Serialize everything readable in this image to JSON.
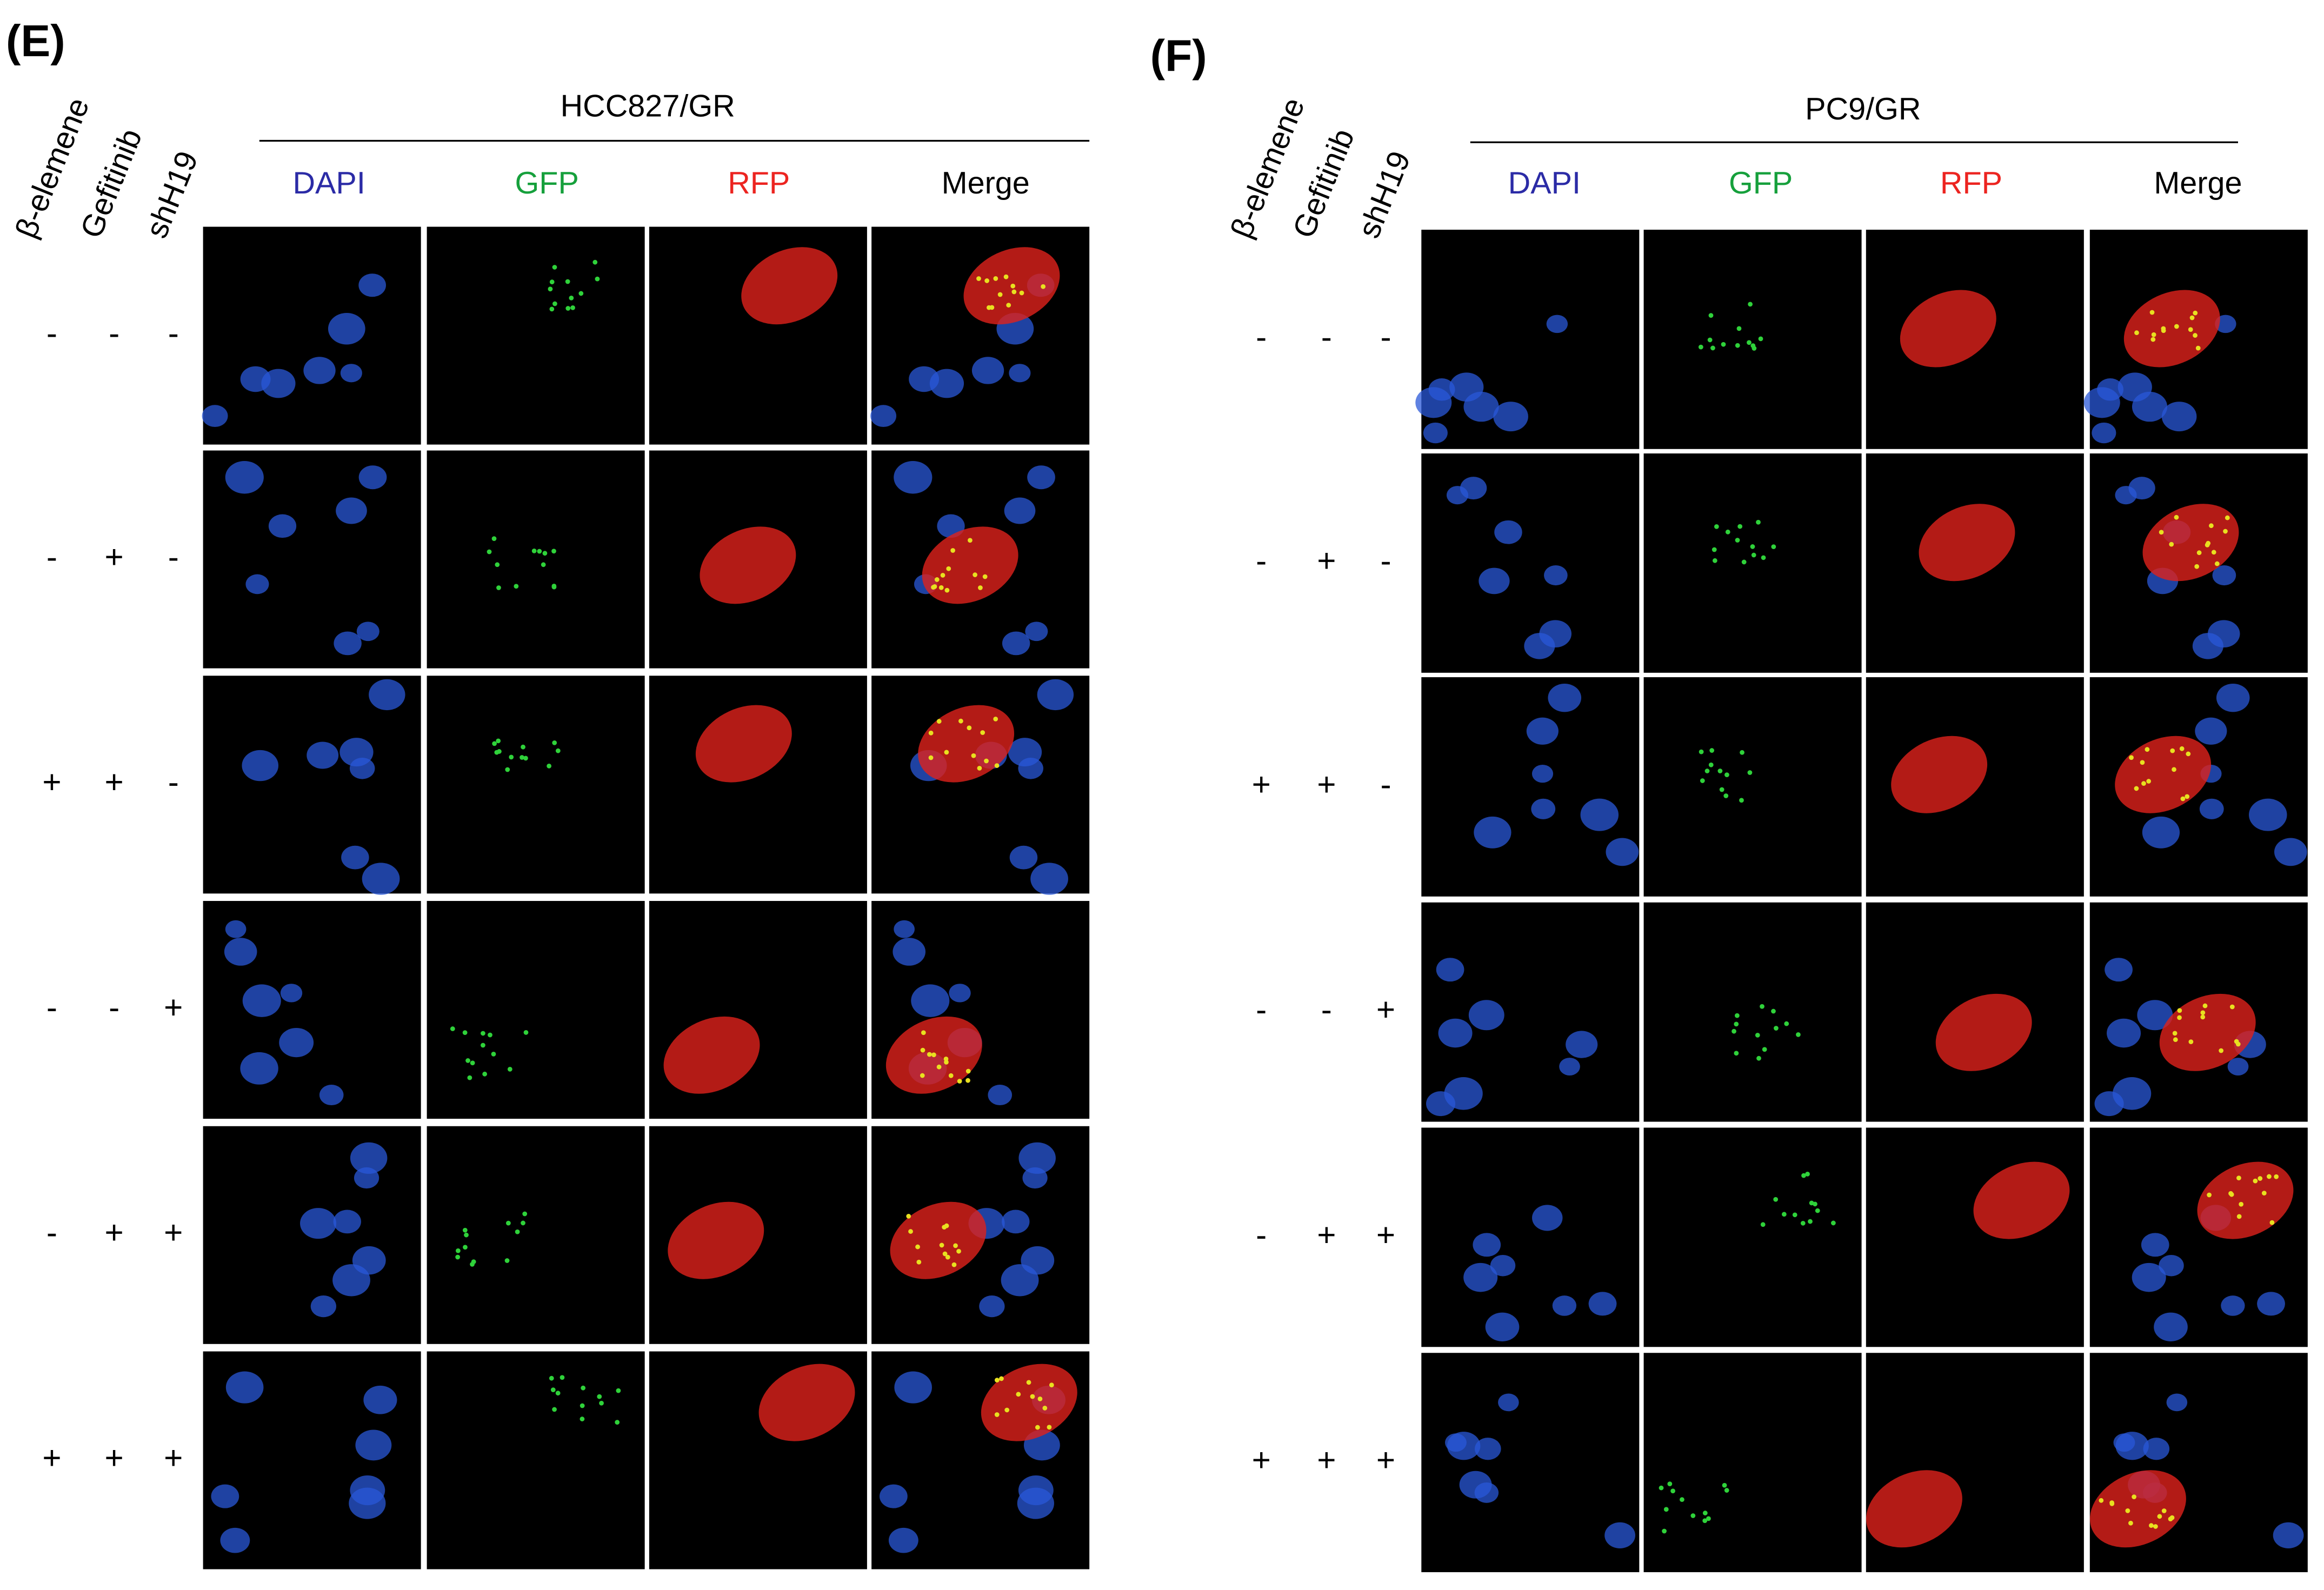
{
  "panels": [
    {
      "label": "(E)",
      "title": "HCC827/GR",
      "factors": [
        "β-elemene",
        "Gefitinib",
        "shH19"
      ],
      "channels": [
        {
          "name": "DAPI",
          "color": "#2b2ba6"
        },
        {
          "name": "GFP",
          "color": "#16a03c"
        },
        {
          "name": "RFP",
          "color": "#ec2420"
        },
        {
          "name": "Merge",
          "color": "#000000"
        }
      ],
      "rows": [
        [
          "-",
          "-",
          "-"
        ],
        [
          "-",
          "+",
          "-"
        ],
        [
          "+",
          "+",
          "-"
        ],
        [
          "-",
          "-",
          "+"
        ],
        [
          "-",
          "+",
          "+"
        ],
        [
          "+",
          "+",
          "+"
        ]
      ]
    },
    {
      "label": "(F)",
      "title": "PC9/GR",
      "factors": [
        "β-elemene",
        "Gefitinib",
        "shH19"
      ],
      "channels": [
        {
          "name": "DAPI",
          "color": "#2b2ba6"
        },
        {
          "name": "GFP",
          "color": "#16a03c"
        },
        {
          "name": "RFP",
          "color": "#ec2420"
        },
        {
          "name": "Merge",
          "color": "#000000"
        }
      ],
      "rows": [
        [
          "-",
          "-",
          "-"
        ],
        [
          "-",
          "+",
          "-"
        ],
        [
          "+",
          "+",
          "-"
        ],
        [
          "-",
          "-",
          "+"
        ],
        [
          "-",
          "+",
          "+"
        ],
        [
          "+",
          "+",
          "+"
        ]
      ]
    }
  ]
}
